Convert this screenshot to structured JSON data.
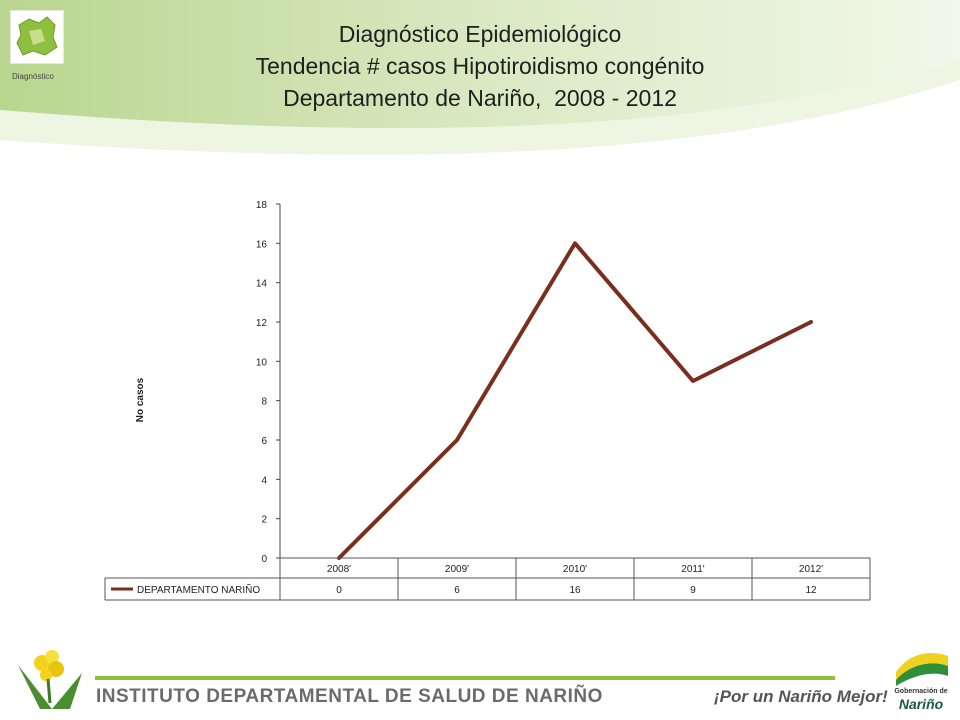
{
  "header": {
    "logo_caption": "Diagnóstico",
    "title_lines": [
      "Diagnóstico Epidemiológico",
      "Tendencia # casos Hipotiroidismo congénito",
      "Departamento de Nariño,  2008 - 2012"
    ]
  },
  "chart_data": {
    "type": "line",
    "categories": [
      "2008'",
      "2009'",
      "2010'",
      "2011'",
      "2012'"
    ],
    "series": [
      {
        "name": "DEPARTAMENTO NARIÑO",
        "values": [
          0,
          6,
          16,
          9,
          12
        ],
        "color": "#7b2e1e"
      }
    ],
    "xlabel": "",
    "ylabel": "No casos",
    "ylim": [
      0,
      18
    ],
    "yticks": [
      0,
      2,
      4,
      6,
      8,
      10,
      12,
      14,
      16,
      18
    ],
    "grid": false,
    "data_table": true
  },
  "footer": {
    "institute": "INSTITUTO DEPARTAMENTAL DE SALUD DE NARIÑO",
    "slogan": "¡Por un Nariño Mejor!",
    "gob_line1": "Gobernación de",
    "gob_line2": "Nariño"
  },
  "colors": {
    "accent_green": "#8dbf3a",
    "series_line": "#7b2e1e"
  }
}
